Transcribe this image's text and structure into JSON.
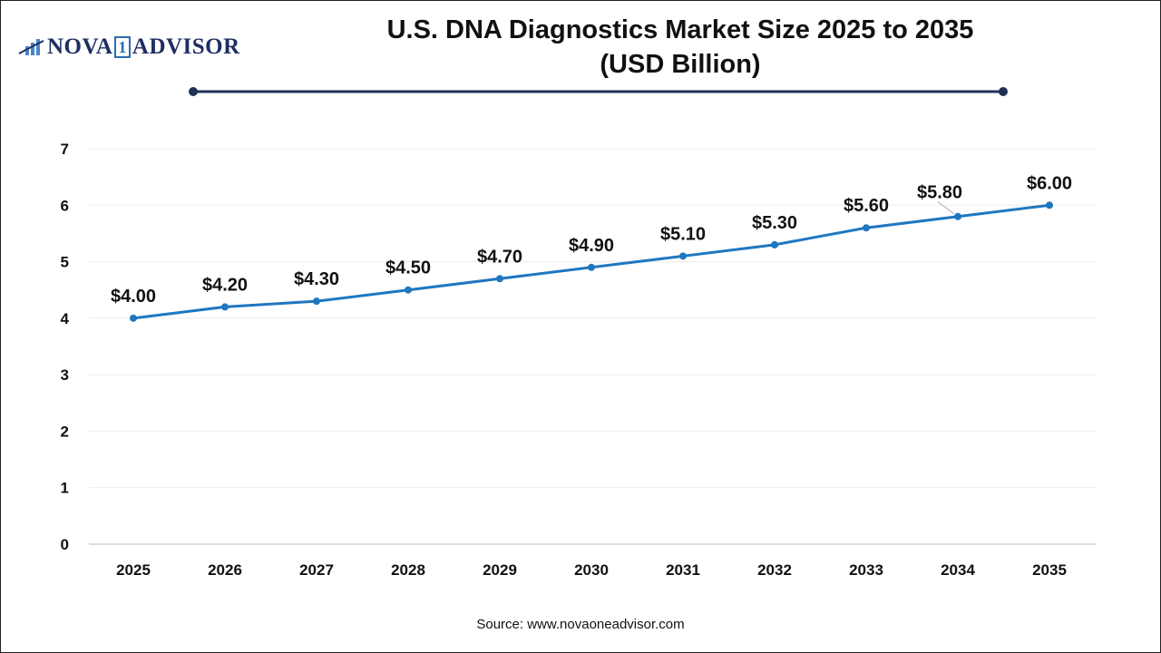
{
  "logo": {
    "text_left": "NOVA",
    "text_num": "1",
    "text_right": "ADVISOR"
  },
  "title_line1": "U.S. DNA Diagnostics Market Size 2025 to 2035",
  "title_line2": "(USD Billion)",
  "source": "Source: www.novaoneadvisor.com",
  "colors": {
    "line": "#1f77c0",
    "title_rule": "#1f2f56",
    "logo": "#1f2f63"
  },
  "chart_data": {
    "type": "line",
    "categories": [
      "2025",
      "2026",
      "2027",
      "2028",
      "2029",
      "2030",
      "2031",
      "2032",
      "2033",
      "2034",
      "2035"
    ],
    "values": [
      4.0,
      4.2,
      4.3,
      4.5,
      4.7,
      4.9,
      5.1,
      5.3,
      5.6,
      5.8,
      6.0
    ],
    "data_labels": [
      "$4.00",
      "$4.20",
      "$4.30",
      "$4.50",
      "$4.70",
      "$4.90",
      "$5.10",
      "$5.30",
      "$5.60",
      "$5.80",
      "$6.00"
    ],
    "yticks": [
      "0",
      "1",
      "2",
      "3",
      "4",
      "5",
      "6",
      "7"
    ],
    "ylim": [
      0,
      7
    ],
    "grid": true,
    "title": "U.S. DNA Diagnostics Market Size 2025 to 2035 (USD Billion)",
    "xlabel": "",
    "ylabel": ""
  }
}
